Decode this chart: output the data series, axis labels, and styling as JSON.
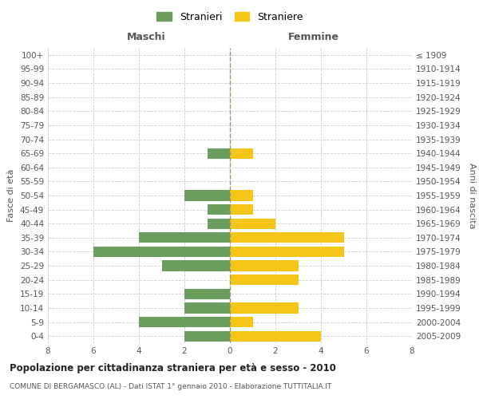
{
  "age_groups": [
    "100+",
    "95-99",
    "90-94",
    "85-89",
    "80-84",
    "75-79",
    "70-74",
    "65-69",
    "60-64",
    "55-59",
    "50-54",
    "45-49",
    "40-44",
    "35-39",
    "30-34",
    "25-29",
    "20-24",
    "15-19",
    "10-14",
    "5-9",
    "0-4"
  ],
  "birth_years": [
    "≤ 1909",
    "1910-1914",
    "1915-1919",
    "1920-1924",
    "1925-1929",
    "1930-1934",
    "1935-1939",
    "1940-1944",
    "1945-1949",
    "1950-1954",
    "1955-1959",
    "1960-1964",
    "1965-1969",
    "1970-1974",
    "1975-1979",
    "1980-1984",
    "1985-1989",
    "1990-1994",
    "1995-1999",
    "2000-2004",
    "2005-2009"
  ],
  "males": [
    0,
    0,
    0,
    0,
    0,
    0,
    0,
    1,
    0,
    0,
    2,
    1,
    1,
    4,
    6,
    3,
    0,
    2,
    2,
    4,
    2
  ],
  "females": [
    0,
    0,
    0,
    0,
    0,
    0,
    0,
    1,
    0,
    0,
    1,
    1,
    2,
    5,
    5,
    3,
    3,
    0,
    3,
    1,
    4
  ],
  "male_color": "#6a9e5e",
  "female_color": "#f5c518",
  "xlim": 8,
  "title": "Popolazione per cittadinanza straniera per età e sesso - 2010",
  "subtitle": "COMUNE DI BERGAMASCO (AL) - Dati ISTAT 1° gennaio 2010 - Elaborazione TUTTITALIA.IT",
  "left_label": "Maschi",
  "right_label": "Femmine",
  "ylabel_left": "Fasce di età",
  "ylabel_right": "Anni di nascita",
  "legend_male": "Stranieri",
  "legend_female": "Straniere",
  "background_color": "#ffffff",
  "grid_color": "#cccccc",
  "bar_height": 0.75
}
